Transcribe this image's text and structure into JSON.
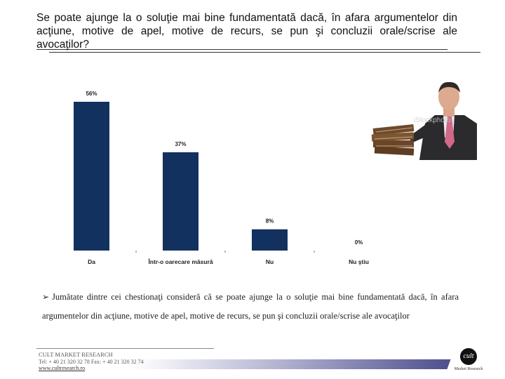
{
  "title": "Se poate ajunge la o soluţie mai bine fundamentată dacă, în afara argumentelor din acţiune, motive de apel, motive de recurs, se pun şi concluzii orale/scrise ale avocaţilor?",
  "chart_data": {
    "type": "bar",
    "categories": [
      "Da",
      "Într-o oarecare măsură",
      "Nu",
      "Nu ştiu"
    ],
    "values": [
      56,
      37,
      8,
      0
    ],
    "value_labels": [
      "56%",
      "37%",
      "8%",
      "0%"
    ],
    "ylim": [
      0,
      56
    ],
    "bar_color": "#13315f",
    "grid": false,
    "title": "",
    "xlabel": "",
    "ylabel": ""
  },
  "photo": {
    "watermark": "iStockphoto"
  },
  "finding": {
    "bullet_icon": "arrow-bullet-icon",
    "text": "Jumătate dintre cei chestionaţi consideră că se poate ajunge la o soluţie mai bine fundamentată dacă, în afara argumentelor din acţiune, motive de apel, motive de recurs, se pun şi concluzii orale/scrise ale avocaţilor"
  },
  "footer": {
    "company": "CULT MARKET RESEARCH",
    "contact": "Tel: + 40 21 320 32 78 Fax: + 40 21 320 32 74",
    "website": "www.cultresearch.ro"
  },
  "logo": {
    "mark": "cult",
    "caption": "Market Research"
  }
}
